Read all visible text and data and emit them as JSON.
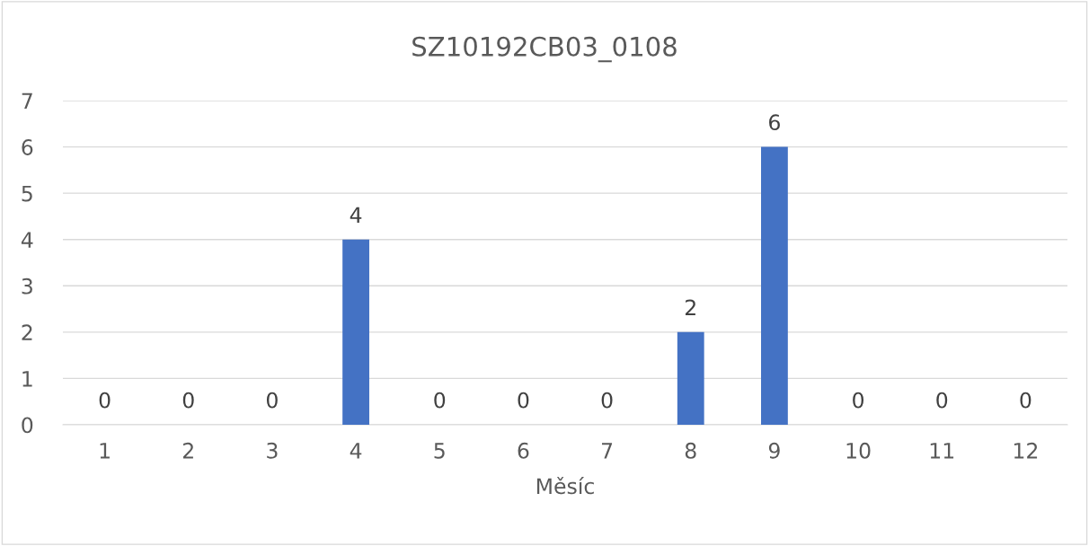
{
  "chart_data": {
    "type": "bar",
    "title": "SZ10192CB03_0108",
    "xlabel": "Měsíc",
    "categories": [
      "1",
      "2",
      "3",
      "4",
      "5",
      "6",
      "7",
      "8",
      "9",
      "10",
      "11",
      "12"
    ],
    "values": [
      0,
      0,
      0,
      4,
      0,
      0,
      0,
      2,
      6,
      0,
      0,
      0
    ],
    "color": "#4472c4",
    "ylim": [
      0,
      7
    ],
    "yticks": [
      0,
      1,
      2,
      3,
      4,
      5,
      6,
      7
    ],
    "grid": "y",
    "data_labels": true,
    "legend": false
  }
}
